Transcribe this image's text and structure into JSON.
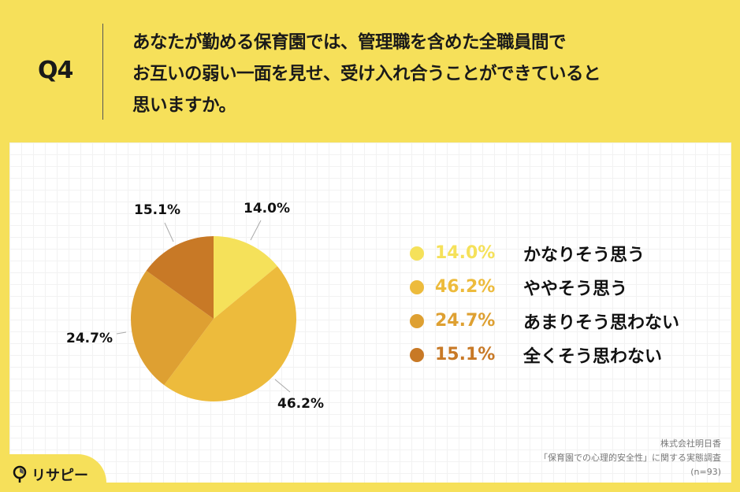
{
  "header": {
    "question_label": "Q4",
    "question_lines": [
      "あなたが勤める保育園では、管理職を含めた全職員間で",
      "お互いの弱い一面を見せ、受け入れ合うことができていると",
      "思いますか。"
    ]
  },
  "chart_data": {
    "type": "pie",
    "title": "あなたが勤める保育園では、管理職を含めた全職員間でお互いの弱い一面を見せ、受け入れ合うことができていると思いますか。",
    "categories": [
      "かなりそう思う",
      "ややそう思う",
      "あまりそう思わない",
      "全くそう思わない"
    ],
    "values": [
      14.0,
      46.2,
      24.7,
      15.1
    ],
    "labels": [
      "14.0%",
      "46.2%",
      "24.7%",
      "15.1%"
    ],
    "colors": [
      "#F5E15A",
      "#EDBB3C",
      "#DEA032",
      "#C87926"
    ],
    "legend_position": "right",
    "start_angle": "12 o'clock, clockwise"
  },
  "legend": {
    "items": [
      {
        "pct": "14.0%",
        "label": "かなりそう思う",
        "color": "#F5E15A"
      },
      {
        "pct": "46.2%",
        "label": "ややそう思う",
        "color": "#EDBB3C"
      },
      {
        "pct": "24.7%",
        "label": "あまりそう思わない",
        "color": "#DEA032"
      },
      {
        "pct": "15.1%",
        "label": "全くそう思わない",
        "color": "#C87926"
      }
    ]
  },
  "source": {
    "company": "株式会社明日香",
    "survey": "「保育園での心理的安全性」に関する実態調査",
    "sample": "(n=93)"
  },
  "logo": {
    "text": "リサピー"
  },
  "colors": {
    "background": "#F6E05A",
    "card": "#FFFFFF"
  }
}
